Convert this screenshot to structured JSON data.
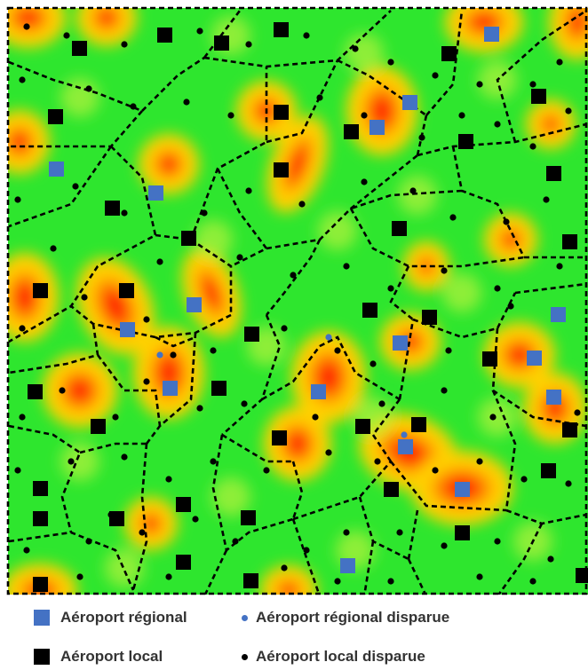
{
  "legend": {
    "regional_airport": "Aéroport régional",
    "lost_regional_airport": "Aéroport régional disparue",
    "local_airport": "Aéroport local",
    "lost_local_airport": "Aéroport local disparue"
  },
  "colors": {
    "regional": "#4472c4",
    "local": "#000000",
    "lost_regional": "#4472c4",
    "lost_local": "#000000",
    "base_field": "#2ee62e",
    "hot": "#ff2000",
    "warm": "#ffd000"
  }
}
